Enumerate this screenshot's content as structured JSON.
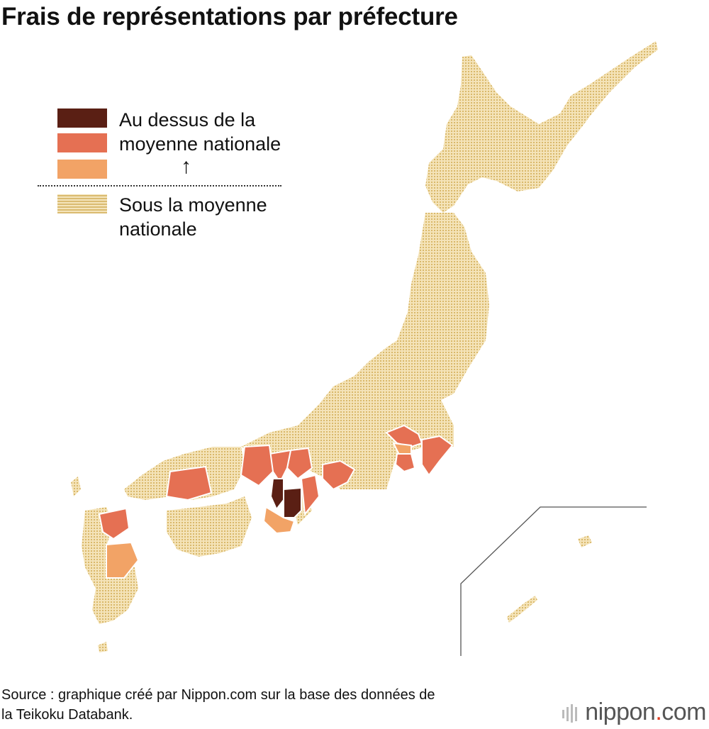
{
  "title": "Frais de représentations par préfecture",
  "colors": {
    "level_high": "#5a1f14",
    "level_mid": "#e57053",
    "level_low": "#f2a366",
    "below": "#f0d9a2",
    "below_dots": "#d9b86a"
  },
  "legend": {
    "above_line1": "Au dessus de la",
    "above_line2": "moyenne nationale",
    "arrow": "↑",
    "below_line1": "Sous la moyenne",
    "below_line2": "nationale"
  },
  "source": {
    "line1": "Source : graphique créé par Nippon.com sur la base des données de",
    "line2": "la Teikoku Databank."
  },
  "brand": {
    "name": "nippon",
    "dot": ".",
    "suffix": "com"
  }
}
